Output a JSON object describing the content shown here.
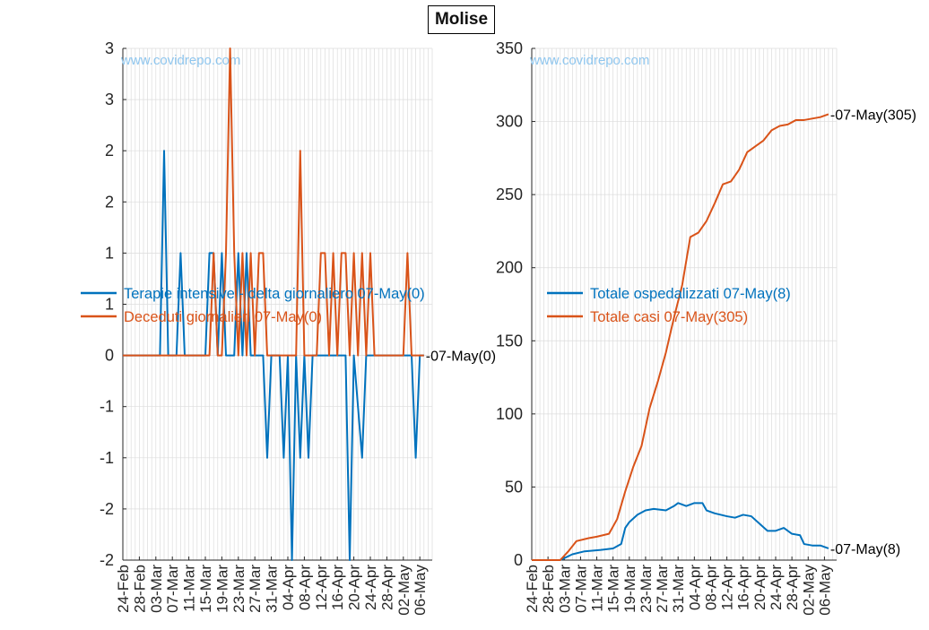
{
  "figure": {
    "title": "Molise"
  },
  "colors": {
    "blue": "#0072BD",
    "orange": "#D95319",
    "watermark": "#8fc6ee",
    "grid": "#dcdcdc"
  },
  "chart_data": [
    {
      "type": "line",
      "panel": "left",
      "watermark": "www.covidrepo.com",
      "ylim": [
        -2,
        3
      ],
      "yticks": [
        -2,
        -1.5,
        -1,
        -0.5,
        0,
        0.5,
        1,
        1.5,
        2,
        2.5,
        3
      ],
      "ytick_labels": [
        "-2",
        "-2",
        "-1",
        "-1",
        "0",
        "1",
        "1",
        "2",
        "2",
        "3",
        "3"
      ],
      "xlim": [
        "24-Feb",
        "09-May"
      ],
      "xtick_labels": [
        "24-Feb",
        "28-Feb",
        "03-Mar",
        "07-Mar",
        "11-Mar",
        "15-Mar",
        "19-Mar",
        "23-Mar",
        "27-Mar",
        "31-Mar",
        "04-Apr",
        "08-Apr",
        "12-Apr",
        "16-Apr",
        "20-Apr",
        "24-Apr",
        "28-Apr",
        "02-May",
        "06-May"
      ],
      "legend_position": "center-left",
      "end_annotation": "-07-May(0)",
      "series": [
        {
          "name": "Terapie intensive - delta giornaliero 07-May(0)",
          "color": "#0072BD",
          "points": [
            [
              "24-Feb",
              0
            ],
            [
              "04-Mar",
              0
            ],
            [
              "05-Mar",
              2
            ],
            [
              "06-Mar",
              0
            ],
            [
              "08-Mar",
              0
            ],
            [
              "09-Mar",
              1
            ],
            [
              "10-Mar",
              0
            ],
            [
              "15-Mar",
              0
            ],
            [
              "16-Mar",
              1
            ],
            [
              "17-Mar",
              1
            ],
            [
              "18-Mar",
              0
            ],
            [
              "19-Mar",
              1
            ],
            [
              "20-Mar",
              0
            ],
            [
              "22-Mar",
              0
            ],
            [
              "23-Mar",
              1
            ],
            [
              "24-Mar",
              0
            ],
            [
              "25-Mar",
              1
            ],
            [
              "26-Mar",
              0
            ],
            [
              "29-Mar",
              0
            ],
            [
              "30-Mar",
              -1
            ],
            [
              "31-Mar",
              0
            ],
            [
              "02-Apr",
              0
            ],
            [
              "03-Apr",
              -1
            ],
            [
              "04-Apr",
              0
            ],
            [
              "05-Apr",
              -2
            ],
            [
              "06-Apr",
              0
            ],
            [
              "07-Apr",
              -1
            ],
            [
              "08-Apr",
              0
            ],
            [
              "09-Apr",
              -1
            ],
            [
              "10-Apr",
              0
            ],
            [
              "18-Apr",
              0
            ],
            [
              "19-Apr",
              -2
            ],
            [
              "20-Apr",
              0
            ],
            [
              "22-Apr",
              -1
            ],
            [
              "23-Apr",
              0
            ],
            [
              "04-May",
              0
            ],
            [
              "05-May",
              -1
            ],
            [
              "06-May",
              0
            ],
            [
              "07-May",
              0
            ]
          ]
        },
        {
          "name": "Deceduti giornalieri 07-May(0)",
          "color": "#D95319",
          "points": [
            [
              "24-Feb",
              0
            ],
            [
              "16-Mar",
              0
            ],
            [
              "17-Mar",
              1
            ],
            [
              "18-Mar",
              0
            ],
            [
              "19-Mar",
              0
            ],
            [
              "20-Mar",
              1
            ],
            [
              "21-Mar",
              3
            ],
            [
              "22-Mar",
              1
            ],
            [
              "23-Mar",
              0
            ],
            [
              "24-Mar",
              1
            ],
            [
              "25-Mar",
              0
            ],
            [
              "26-Mar",
              1
            ],
            [
              "27-Mar",
              0
            ],
            [
              "28-Mar",
              1
            ],
            [
              "29-Mar",
              1
            ],
            [
              "30-Mar",
              0
            ],
            [
              "06-Apr",
              0
            ],
            [
              "07-Apr",
              2
            ],
            [
              "08-Apr",
              0
            ],
            [
              "11-Apr",
              0
            ],
            [
              "12-Apr",
              1
            ],
            [
              "13-Apr",
              1
            ],
            [
              "14-Apr",
              0
            ],
            [
              "15-Apr",
              1
            ],
            [
              "16-Apr",
              0
            ],
            [
              "17-Apr",
              1
            ],
            [
              "18-Apr",
              1
            ],
            [
              "19-Apr",
              0
            ],
            [
              "20-Apr",
              1
            ],
            [
              "21-Apr",
              0
            ],
            [
              "22-Apr",
              1
            ],
            [
              "23-Apr",
              0
            ],
            [
              "24-Apr",
              1
            ],
            [
              "25-Apr",
              0
            ],
            [
              "02-May",
              0
            ],
            [
              "03-May",
              1
            ],
            [
              "04-May",
              0
            ],
            [
              "07-May",
              0
            ]
          ]
        }
      ]
    },
    {
      "type": "line",
      "panel": "right",
      "watermark": "www.covidrepo.com",
      "ylim": [
        0,
        350
      ],
      "yticks": [
        0,
        50,
        100,
        150,
        200,
        250,
        300,
        350
      ],
      "ytick_labels": [
        "0",
        "50",
        "100",
        "150",
        "200",
        "250",
        "300",
        "350"
      ],
      "xlim": [
        "24-Feb",
        "09-May"
      ],
      "xtick_labels": [
        "24-Feb",
        "28-Feb",
        "03-Mar",
        "07-Mar",
        "11-Mar",
        "15-Mar",
        "19-Mar",
        "23-Mar",
        "27-Mar",
        "31-Mar",
        "04-Apr",
        "08-Apr",
        "12-Apr",
        "16-Apr",
        "20-Apr",
        "24-Apr",
        "28-Apr",
        "02-May",
        "06-May"
      ],
      "legend_position": "center-right",
      "series": [
        {
          "name": "Totale ospedalizzati 07-May(8)",
          "color": "#0072BD",
          "end_annotation": "-07-May(8)",
          "points": [
            [
              "24-Feb",
              0
            ],
            [
              "02-Mar",
              0
            ],
            [
              "05-Mar",
              4
            ],
            [
              "08-Mar",
              6
            ],
            [
              "12-Mar",
              7
            ],
            [
              "15-Mar",
              8
            ],
            [
              "17-Mar",
              11
            ],
            [
              "18-Mar",
              22
            ],
            [
              "19-Mar",
              26
            ],
            [
              "21-Mar",
              31
            ],
            [
              "23-Mar",
              34
            ],
            [
              "25-Mar",
              35
            ],
            [
              "28-Mar",
              34
            ],
            [
              "30-Mar",
              37
            ],
            [
              "31-Mar",
              39
            ],
            [
              "02-Apr",
              37
            ],
            [
              "04-Apr",
              39
            ],
            [
              "06-Apr",
              39
            ],
            [
              "07-Apr",
              34
            ],
            [
              "09-Apr",
              32
            ],
            [
              "12-Apr",
              30
            ],
            [
              "14-Apr",
              29
            ],
            [
              "16-Apr",
              31
            ],
            [
              "18-Apr",
              30
            ],
            [
              "20-Apr",
              25
            ],
            [
              "22-Apr",
              20
            ],
            [
              "24-Apr",
              20
            ],
            [
              "26-Apr",
              22
            ],
            [
              "28-Apr",
              18
            ],
            [
              "30-Apr",
              17
            ],
            [
              "01-May",
              11
            ],
            [
              "03-May",
              10
            ],
            [
              "05-May",
              10
            ],
            [
              "07-May",
              8
            ]
          ]
        },
        {
          "name": "Totale casi 07-May(305)",
          "color": "#D95319",
          "end_annotation": "-07-May(305)",
          "points": [
            [
              "24-Feb",
              0
            ],
            [
              "02-Mar",
              0
            ],
            [
              "04-Mar",
              6
            ],
            [
              "06-Mar",
              13
            ],
            [
              "09-Mar",
              15
            ],
            [
              "11-Mar",
              16
            ],
            [
              "14-Mar",
              18
            ],
            [
              "16-Mar",
              28
            ],
            [
              "18-Mar",
              47
            ],
            [
              "20-Mar",
              64
            ],
            [
              "22-Mar",
              78
            ],
            [
              "24-Mar",
              104
            ],
            [
              "26-Mar",
              122
            ],
            [
              "28-Mar",
              142
            ],
            [
              "30-Mar",
              166
            ],
            [
              "01-Apr",
              188
            ],
            [
              "03-Apr",
              221
            ],
            [
              "05-Apr",
              224
            ],
            [
              "07-Apr",
              232
            ],
            [
              "09-Apr",
              244
            ],
            [
              "11-Apr",
              257
            ],
            [
              "13-Apr",
              259
            ],
            [
              "15-Apr",
              267
            ],
            [
              "17-Apr",
              279
            ],
            [
              "19-Apr",
              283
            ],
            [
              "21-Apr",
              287
            ],
            [
              "23-Apr",
              294
            ],
            [
              "25-Apr",
              297
            ],
            [
              "27-Apr",
              298
            ],
            [
              "29-Apr",
              301
            ],
            [
              "01-May",
              301
            ],
            [
              "03-May",
              302
            ],
            [
              "05-May",
              303
            ],
            [
              "07-May",
              305
            ]
          ]
        }
      ]
    }
  ]
}
